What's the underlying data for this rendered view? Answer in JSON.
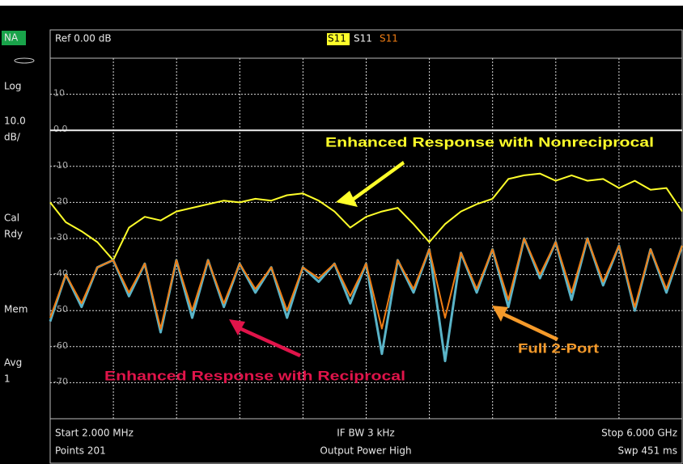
{
  "chart_data": {
    "type": "line",
    "reference": "Ref 0.00 dB",
    "x": [
      0.002,
      0.15,
      0.3,
      0.45,
      0.6,
      0.75,
      0.9,
      1.05,
      1.2,
      1.35,
      1.5,
      1.65,
      1.8,
      1.95,
      2.1,
      2.25,
      2.4,
      2.55,
      2.7,
      2.85,
      3.0,
      3.15,
      3.3,
      3.45,
      3.6,
      3.75,
      3.9,
      4.05,
      4.2,
      4.35,
      4.5,
      4.65,
      4.8,
      4.95,
      5.1,
      5.25,
      5.4,
      5.55,
      5.7,
      5.85,
      6.0
    ],
    "xlim": [
      0.002,
      6.0
    ],
    "ylim": [
      -80,
      20
    ],
    "yticks": [
      10,
      {
        "value": 0,
        "label": "0.0"
      },
      -10,
      -20,
      -30,
      -40,
      -50,
      -60,
      -70
    ],
    "grid": true,
    "series": [
      {
        "name": "S11",
        "color": "#ffff2a",
        "values": [
          -20,
          -25.5,
          -28,
          -31,
          -36,
          -27,
          -24,
          -25,
          -22.5,
          -21.5,
          -20.5,
          -19.5,
          -20,
          -19,
          -19.5,
          -18,
          -17.5,
          -19.5,
          -22.5,
          -27,
          -24,
          -22.5,
          -21.5,
          -26,
          -31,
          -26,
          -22.5,
          -20.5,
          -19,
          -13.5,
          -12.5,
          -12,
          -14,
          -12.5,
          -14,
          -13.5,
          -16,
          -14,
          -16.5,
          -16,
          -22.5
        ]
      },
      {
        "name": "S11",
        "color": "#f0f0f0",
        "values": [
          0,
          0,
          0,
          0,
          0,
          0,
          0,
          0,
          0,
          0,
          0,
          0,
          0,
          0,
          0,
          0,
          0,
          0,
          0,
          0,
          0,
          0,
          0,
          0,
          0,
          0,
          0,
          0,
          0,
          0,
          0,
          0,
          0,
          0,
          0,
          0,
          0,
          0,
          0,
          0,
          0
        ]
      },
      {
        "color": "#5ab4c8",
        "values": [
          -53,
          -40,
          -49,
          -38,
          -36,
          -46,
          -37,
          -56,
          -36,
          -52,
          -36,
          -49,
          -37,
          -45,
          -38,
          -52,
          -38,
          -42,
          -37,
          -48,
          -37,
          -62,
          -36,
          -45,
          -33,
          -64,
          -34,
          -45,
          -33,
          -49,
          -30,
          -41,
          -31,
          -47,
          -30,
          -43,
          -32,
          -50,
          -33,
          -45,
          -32
        ]
      },
      {
        "name": "S11",
        "color": "#f07d14",
        "values": [
          -52,
          -40,
          -48,
          -38,
          -36,
          -45,
          -37,
          -55,
          -36,
          -50,
          -36,
          -48,
          -37,
          -44,
          -38,
          -50,
          -38,
          -41,
          -37,
          -46,
          -37,
          -55,
          -36,
          -44,
          -33,
          -52,
          -34,
          -44,
          -33,
          -47,
          -30,
          -40,
          -31,
          -45,
          -30,
          -42,
          -32,
          -49,
          -33,
          -44,
          -32
        ]
      }
    ],
    "annotations": [
      {
        "text": "Enhanced Response with Nonreciprocal",
        "color": "#ffff2a"
      },
      {
        "text": "Enhanced Response with Reciprocal",
        "color": "#e0144a"
      },
      {
        "text": "Full 2-Port",
        "color": "#f59a2a"
      }
    ]
  },
  "status_panel": [
    "NA",
    "Log",
    "10.0",
    "dB/",
    "Cal",
    "Rdy",
    "Mem",
    "Avg",
    "1"
  ],
  "footer": {
    "start": "Start 2.000 MHz",
    "if_bw": "IF BW 3 kHz",
    "stop": "Stop 6.000 GHz",
    "points": "Points 201",
    "power": "Output Power High",
    "sweep": "Swp 451 ms"
  }
}
